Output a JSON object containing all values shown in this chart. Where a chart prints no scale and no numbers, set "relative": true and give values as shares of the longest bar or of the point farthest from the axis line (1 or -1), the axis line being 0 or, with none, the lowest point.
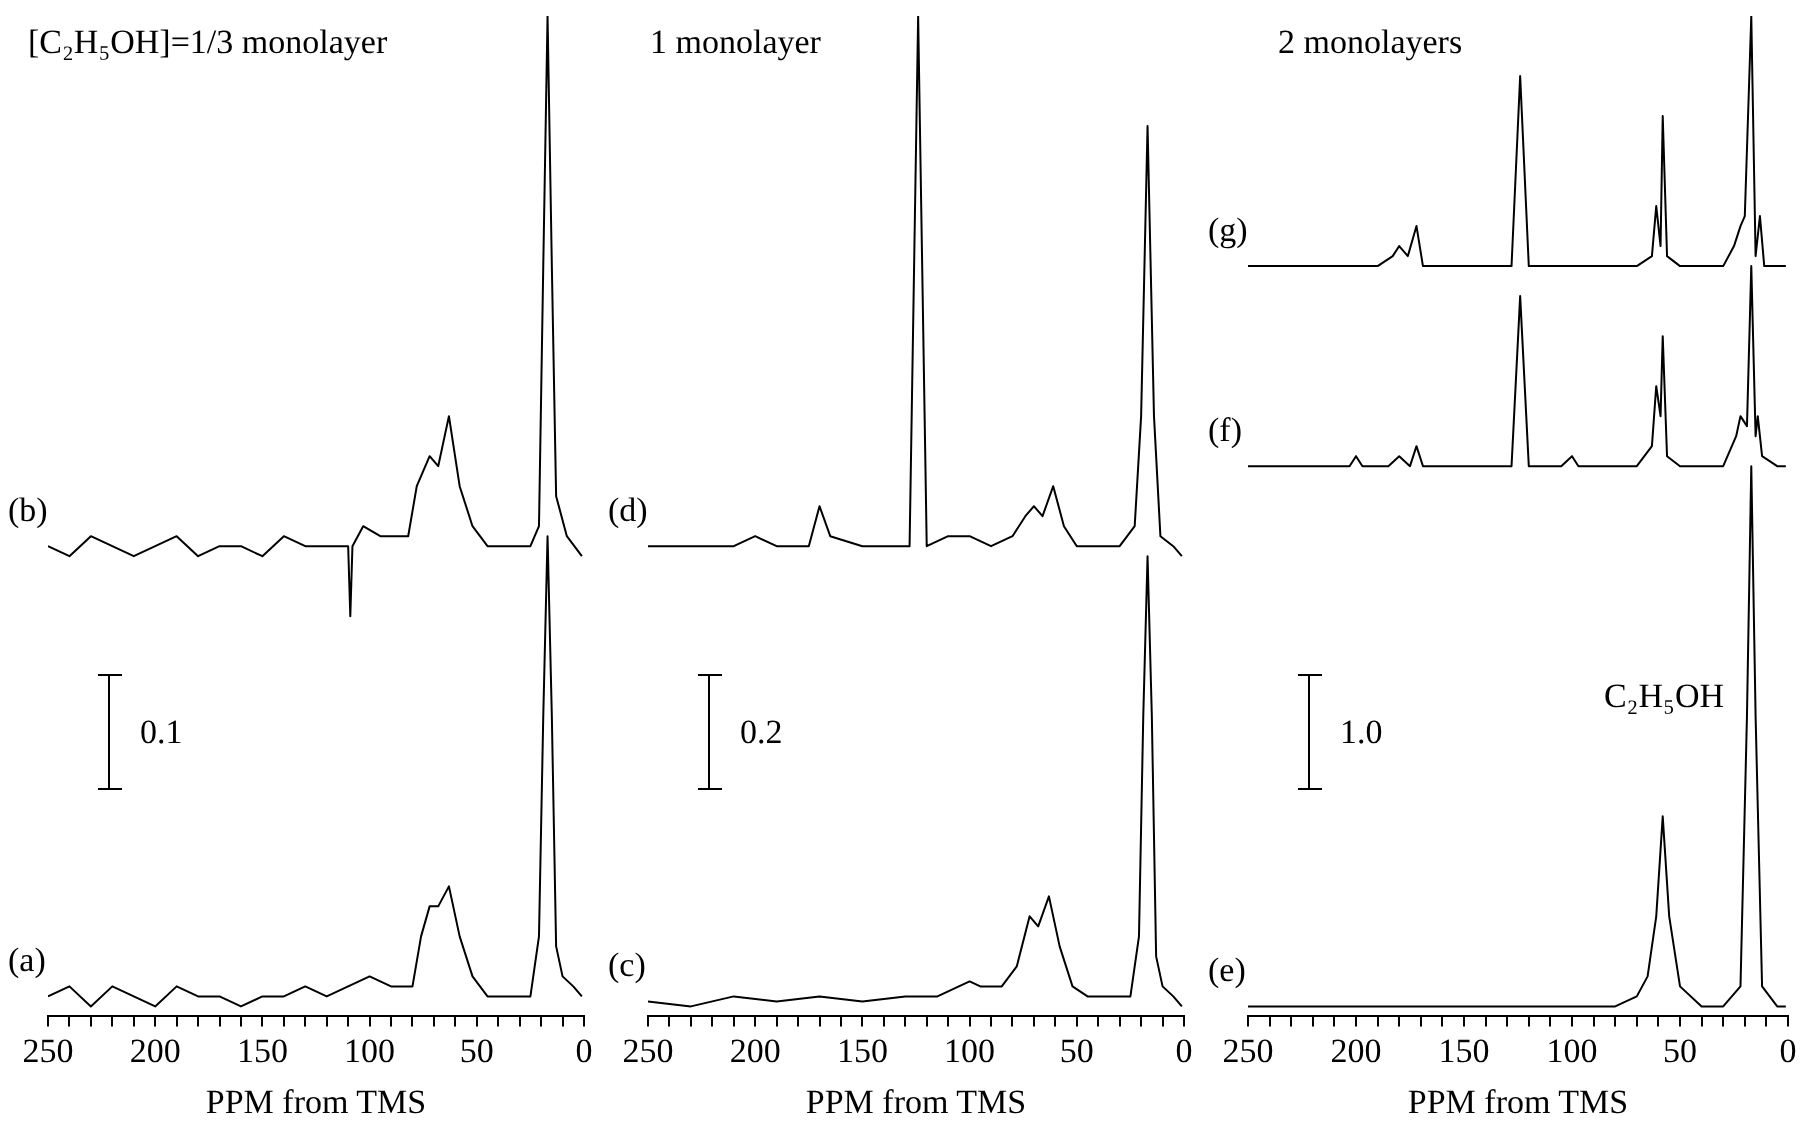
{
  "chart_data": [
    {
      "type": "line",
      "title": "[C₂H₅OH]=1/3 monolayer",
      "xlabel": "PPM from TMS",
      "relative": true,
      "xlim": [
        250,
        0
      ],
      "xticks": [
        250,
        {
          "value": 240,
          "label": null
        },
        {
          "value": 230,
          "label": null
        },
        {
          "value": 220,
          "label": null
        },
        {
          "value": 210,
          "label": null
        },
        200,
        {
          "value": 190,
          "label": null
        },
        {
          "value": 180,
          "label": null
        },
        {
          "value": 170,
          "label": null
        },
        {
          "value": 160,
          "label": null
        },
        150,
        {
          "value": 140,
          "label": null
        },
        {
          "value": 130,
          "label": null
        },
        {
          "value": 120,
          "label": null
        },
        {
          "value": 110,
          "label": null
        },
        100,
        {
          "value": 90,
          "label": null
        },
        {
          "value": 80,
          "label": null
        },
        {
          "value": 70,
          "label": null
        },
        {
          "value": 60,
          "label": null
        },
        50,
        {
          "value": 40,
          "label": null
        },
        {
          "value": 30,
          "label": null
        },
        {
          "value": 20,
          "label": null
        },
        {
          "value": 10,
          "label": null
        },
        0
      ],
      "tick_labels": "x",
      "grid": false,
      "legend": false,
      "marker": "none",
      "annotations": [
        "0.1"
      ],
      "series": [
        {
          "name": "(a)",
          "color": "#000000",
          "x": [
            250,
            240,
            230,
            220,
            210,
            200,
            190,
            180,
            170,
            160,
            150,
            140,
            130,
            120,
            110,
            100,
            90,
            80,
            76,
            72,
            68,
            63,
            58,
            52,
            45,
            35,
            25,
            21,
            19,
            17,
            15,
            13,
            10,
            5,
            1
          ],
          "values": [
            0.02,
            0.03,
            0.01,
            0.03,
            0.02,
            0.01,
            0.03,
            0.02,
            0.02,
            0.01,
            0.02,
            0.02,
            0.03,
            0.02,
            0.03,
            0.04,
            0.03,
            0.03,
            0.08,
            0.11,
            0.11,
            0.13,
            0.08,
            0.04,
            0.02,
            0.02,
            0.02,
            0.08,
            0.3,
            0.48,
            0.3,
            0.07,
            0.04,
            0.03,
            0.02
          ]
        },
        {
          "name": "(b)",
          "color": "#000000",
          "x": [
            250,
            240,
            230,
            220,
            210,
            200,
            190,
            180,
            170,
            160,
            150,
            140,
            130,
            120,
            110,
            109,
            108,
            103,
            95,
            82,
            78,
            72,
            68,
            63,
            58,
            52,
            45,
            35,
            25,
            21,
            19,
            17,
            15,
            13,
            8,
            1
          ],
          "values": [
            0.47,
            0.46,
            0.48,
            0.47,
            0.46,
            0.47,
            0.48,
            0.46,
            0.47,
            0.47,
            0.46,
            0.48,
            0.47,
            0.47,
            0.47,
            0.4,
            0.47,
            0.49,
            0.48,
            0.48,
            0.53,
            0.56,
            0.55,
            0.6,
            0.53,
            0.49,
            0.47,
            0.47,
            0.47,
            0.49,
            0.75,
            1,
            0.75,
            0.52,
            0.48,
            0.46
          ]
        }
      ]
    },
    {
      "type": "line",
      "title": "1 monolayer",
      "xlabel": "PPM from TMS",
      "relative": true,
      "xlim": [
        250,
        0
      ],
      "xticks": [
        250,
        {
          "value": 240,
          "label": null
        },
        {
          "value": 230,
          "label": null
        },
        {
          "value": 220,
          "label": null
        },
        {
          "value": 210,
          "label": null
        },
        200,
        {
          "value": 190,
          "label": null
        },
        {
          "value": 180,
          "label": null
        },
        {
          "value": 170,
          "label": null
        },
        {
          "value": 160,
          "label": null
        },
        150,
        {
          "value": 140,
          "label": null
        },
        {
          "value": 130,
          "label": null
        },
        {
          "value": 120,
          "label": null
        },
        {
          "value": 110,
          "label": null
        },
        100,
        {
          "value": 90,
          "label": null
        },
        {
          "value": 80,
          "label": null
        },
        {
          "value": 70,
          "label": null
        },
        {
          "value": 60,
          "label": null
        },
        50,
        {
          "value": 40,
          "label": null
        },
        {
          "value": 30,
          "label": null
        },
        {
          "value": 20,
          "label": null
        },
        {
          "value": 10,
          "label": null
        },
        0
      ],
      "tick_labels": "x",
      "grid": false,
      "legend": false,
      "marker": "none",
      "annotations": [
        "0.2"
      ],
      "series": [
        {
          "name": "(c)",
          "color": "#000000",
          "x": [
            250,
            230,
            210,
            190,
            170,
            150,
            130,
            115,
            105,
            100,
            95,
            85,
            78,
            72,
            68,
            63,
            58,
            52,
            45,
            35,
            25,
            21,
            19,
            17,
            15,
            13,
            10,
            5,
            1
          ],
          "values": [
            0.015,
            0.01,
            0.02,
            0.015,
            0.02,
            0.015,
            0.02,
            0.02,
            0.03,
            0.035,
            0.03,
            0.03,
            0.05,
            0.1,
            0.09,
            0.12,
            0.07,
            0.03,
            0.02,
            0.02,
            0.02,
            0.08,
            0.3,
            0.46,
            0.3,
            0.06,
            0.03,
            0.02,
            0.01
          ]
        },
        {
          "name": "(d)",
          "color": "#000000",
          "x": [
            250,
            230,
            210,
            200,
            190,
            175,
            170,
            165,
            150,
            140,
            128,
            124,
            120,
            110,
            100,
            90,
            80,
            74,
            70,
            66,
            61,
            56,
            50,
            40,
            30,
            23,
            20,
            17,
            14,
            11,
            5,
            1
          ],
          "values": [
            0.47,
            0.47,
            0.47,
            0.48,
            0.47,
            0.47,
            0.51,
            0.48,
            0.47,
            0.47,
            0.47,
            1,
            0.47,
            0.48,
            0.48,
            0.47,
            0.48,
            0.5,
            0.51,
            0.5,
            0.53,
            0.49,
            0.47,
            0.47,
            0.47,
            0.49,
            0.6,
            0.89,
            0.6,
            0.48,
            0.47,
            0.46
          ]
        }
      ]
    },
    {
      "type": "line",
      "title": "2 monolayers",
      "xlabel": "PPM from TMS",
      "relative": true,
      "xlim": [
        250,
        0
      ],
      "xticks": [
        250,
        {
          "value": 240,
          "label": null
        },
        {
          "value": 230,
          "label": null
        },
        {
          "value": 220,
          "label": null
        },
        {
          "value": 210,
          "label": null
        },
        200,
        {
          "value": 190,
          "label": null
        },
        {
          "value": 180,
          "label": null
        },
        {
          "value": 170,
          "label": null
        },
        {
          "value": 160,
          "label": null
        },
        150,
        {
          "value": 140,
          "label": null
        },
        {
          "value": 130,
          "label": null
        },
        {
          "value": 120,
          "label": null
        },
        {
          "value": 110,
          "label": null
        },
        100,
        {
          "value": 90,
          "label": null
        },
        {
          "value": 80,
          "label": null
        },
        {
          "value": 70,
          "label": null
        },
        {
          "value": 60,
          "label": null
        },
        50,
        {
          "value": 40,
          "label": null
        },
        {
          "value": 30,
          "label": null
        },
        {
          "value": 20,
          "label": null
        },
        {
          "value": 10,
          "label": null
        },
        0
      ],
      "tick_labels": "x",
      "grid": false,
      "legend": false,
      "marker": "none",
      "annotations": [
        "1.0",
        "C₂H₅OH"
      ],
      "series": [
        {
          "name": "(e)",
          "color": "#000000",
          "x": [
            250,
            220,
            190,
            160,
            130,
            100,
            80,
            70,
            65,
            61,
            58,
            55,
            50,
            40,
            30,
            22,
            19,
            17,
            15,
            12,
            5,
            1
          ],
          "values": [
            0.01,
            0.01,
            0.01,
            0.01,
            0.01,
            0.01,
            0.01,
            0.02,
            0.04,
            0.1,
            0.2,
            0.1,
            0.03,
            0.01,
            0.01,
            0.03,
            0.3,
            0.55,
            0.3,
            0.03,
            0.01,
            0.01
          ]
        },
        {
          "name": "(f)",
          "color": "#000000",
          "x": [
            250,
            220,
            203,
            200,
            197,
            185,
            180,
            175,
            172,
            169,
            150,
            128,
            124,
            120,
            105,
            100,
            97,
            90,
            70,
            63,
            61,
            59,
            58,
            56,
            50,
            40,
            30,
            24,
            22,
            19,
            17,
            15,
            14,
            12,
            5,
            1
          ],
          "values": [
            0.55,
            0.55,
            0.55,
            0.56,
            0.55,
            0.55,
            0.56,
            0.55,
            0.57,
            0.55,
            0.55,
            0.55,
            0.72,
            0.55,
            0.55,
            0.56,
            0.55,
            0.55,
            0.55,
            0.57,
            0.63,
            0.6,
            0.68,
            0.56,
            0.55,
            0.55,
            0.55,
            0.58,
            0.6,
            0.59,
            0.75,
            0.58,
            0.6,
            0.56,
            0.55,
            0.55
          ]
        },
        {
          "name": "(g)",
          "color": "#000000",
          "x": [
            250,
            220,
            190,
            183,
            180,
            176,
            172,
            169,
            150,
            128,
            124,
            120,
            100,
            90,
            70,
            63,
            61,
            59,
            58,
            56,
            50,
            40,
            30,
            25,
            22,
            20,
            17,
            15,
            13,
            11,
            5,
            1
          ],
          "values": [
            0.75,
            0.75,
            0.75,
            0.76,
            0.77,
            0.76,
            0.79,
            0.75,
            0.75,
            0.75,
            0.94,
            0.75,
            0.75,
            0.75,
            0.75,
            0.76,
            0.81,
            0.77,
            0.9,
            0.76,
            0.75,
            0.75,
            0.75,
            0.77,
            0.79,
            0.8,
            1,
            0.76,
            0.8,
            0.75,
            0.75,
            0.75
          ]
        }
      ]
    }
  ]
}
